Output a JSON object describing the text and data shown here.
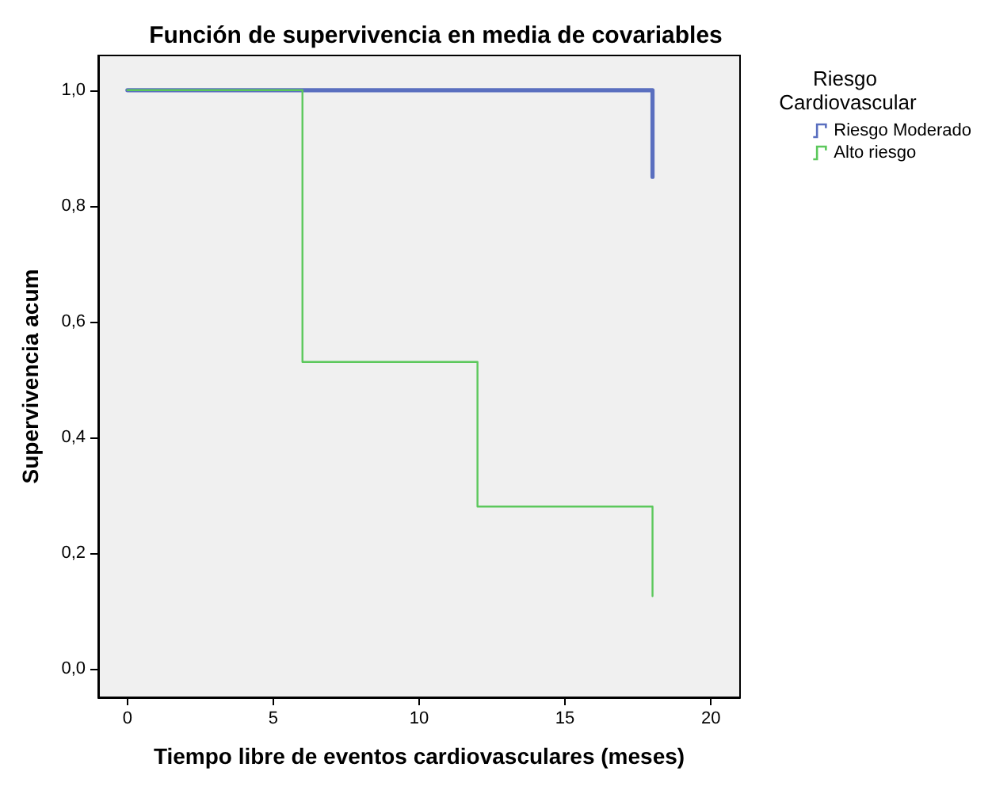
{
  "chart_data": {
    "type": "step",
    "title": "Función de supervivencia en media de covariables",
    "xlabel": "Tiempo libre de eventos cardiovasculares (meses)",
    "ylabel": "Supervivencia acum",
    "legend_title": "Riesgo Cardiovascular",
    "legend": "top right",
    "grid": false,
    "marker": "none",
    "line_style": "solid",
    "xlim": [
      -1.0,
      21.0
    ],
    "xticks": [
      0,
      5,
      10,
      15,
      20
    ],
    "ylim": [
      -0.05,
      1.06
    ],
    "yticks": [
      {
        "value": 0,
        "label": "0,0"
      },
      {
        "value": 0.2,
        "label": "0,2"
      },
      {
        "value": 0.4,
        "label": "0,4"
      },
      {
        "value": 0.6,
        "label": "0,6"
      },
      {
        "value": 0.8,
        "label": "0,8"
      },
      {
        "value": 1,
        "label": "1,0"
      }
    ],
    "series": [
      {
        "name": "Riesgo Moderado",
        "color": "#5a6fbf",
        "x": [
          0,
          18
        ],
        "values": [
          1,
          0.85
        ]
      },
      {
        "name": "Alto riesgo",
        "color": "#5cc85c",
        "x": [
          0,
          6,
          12,
          18
        ],
        "values": [
          1,
          0.53,
          0.28,
          0.125
        ]
      }
    ]
  }
}
